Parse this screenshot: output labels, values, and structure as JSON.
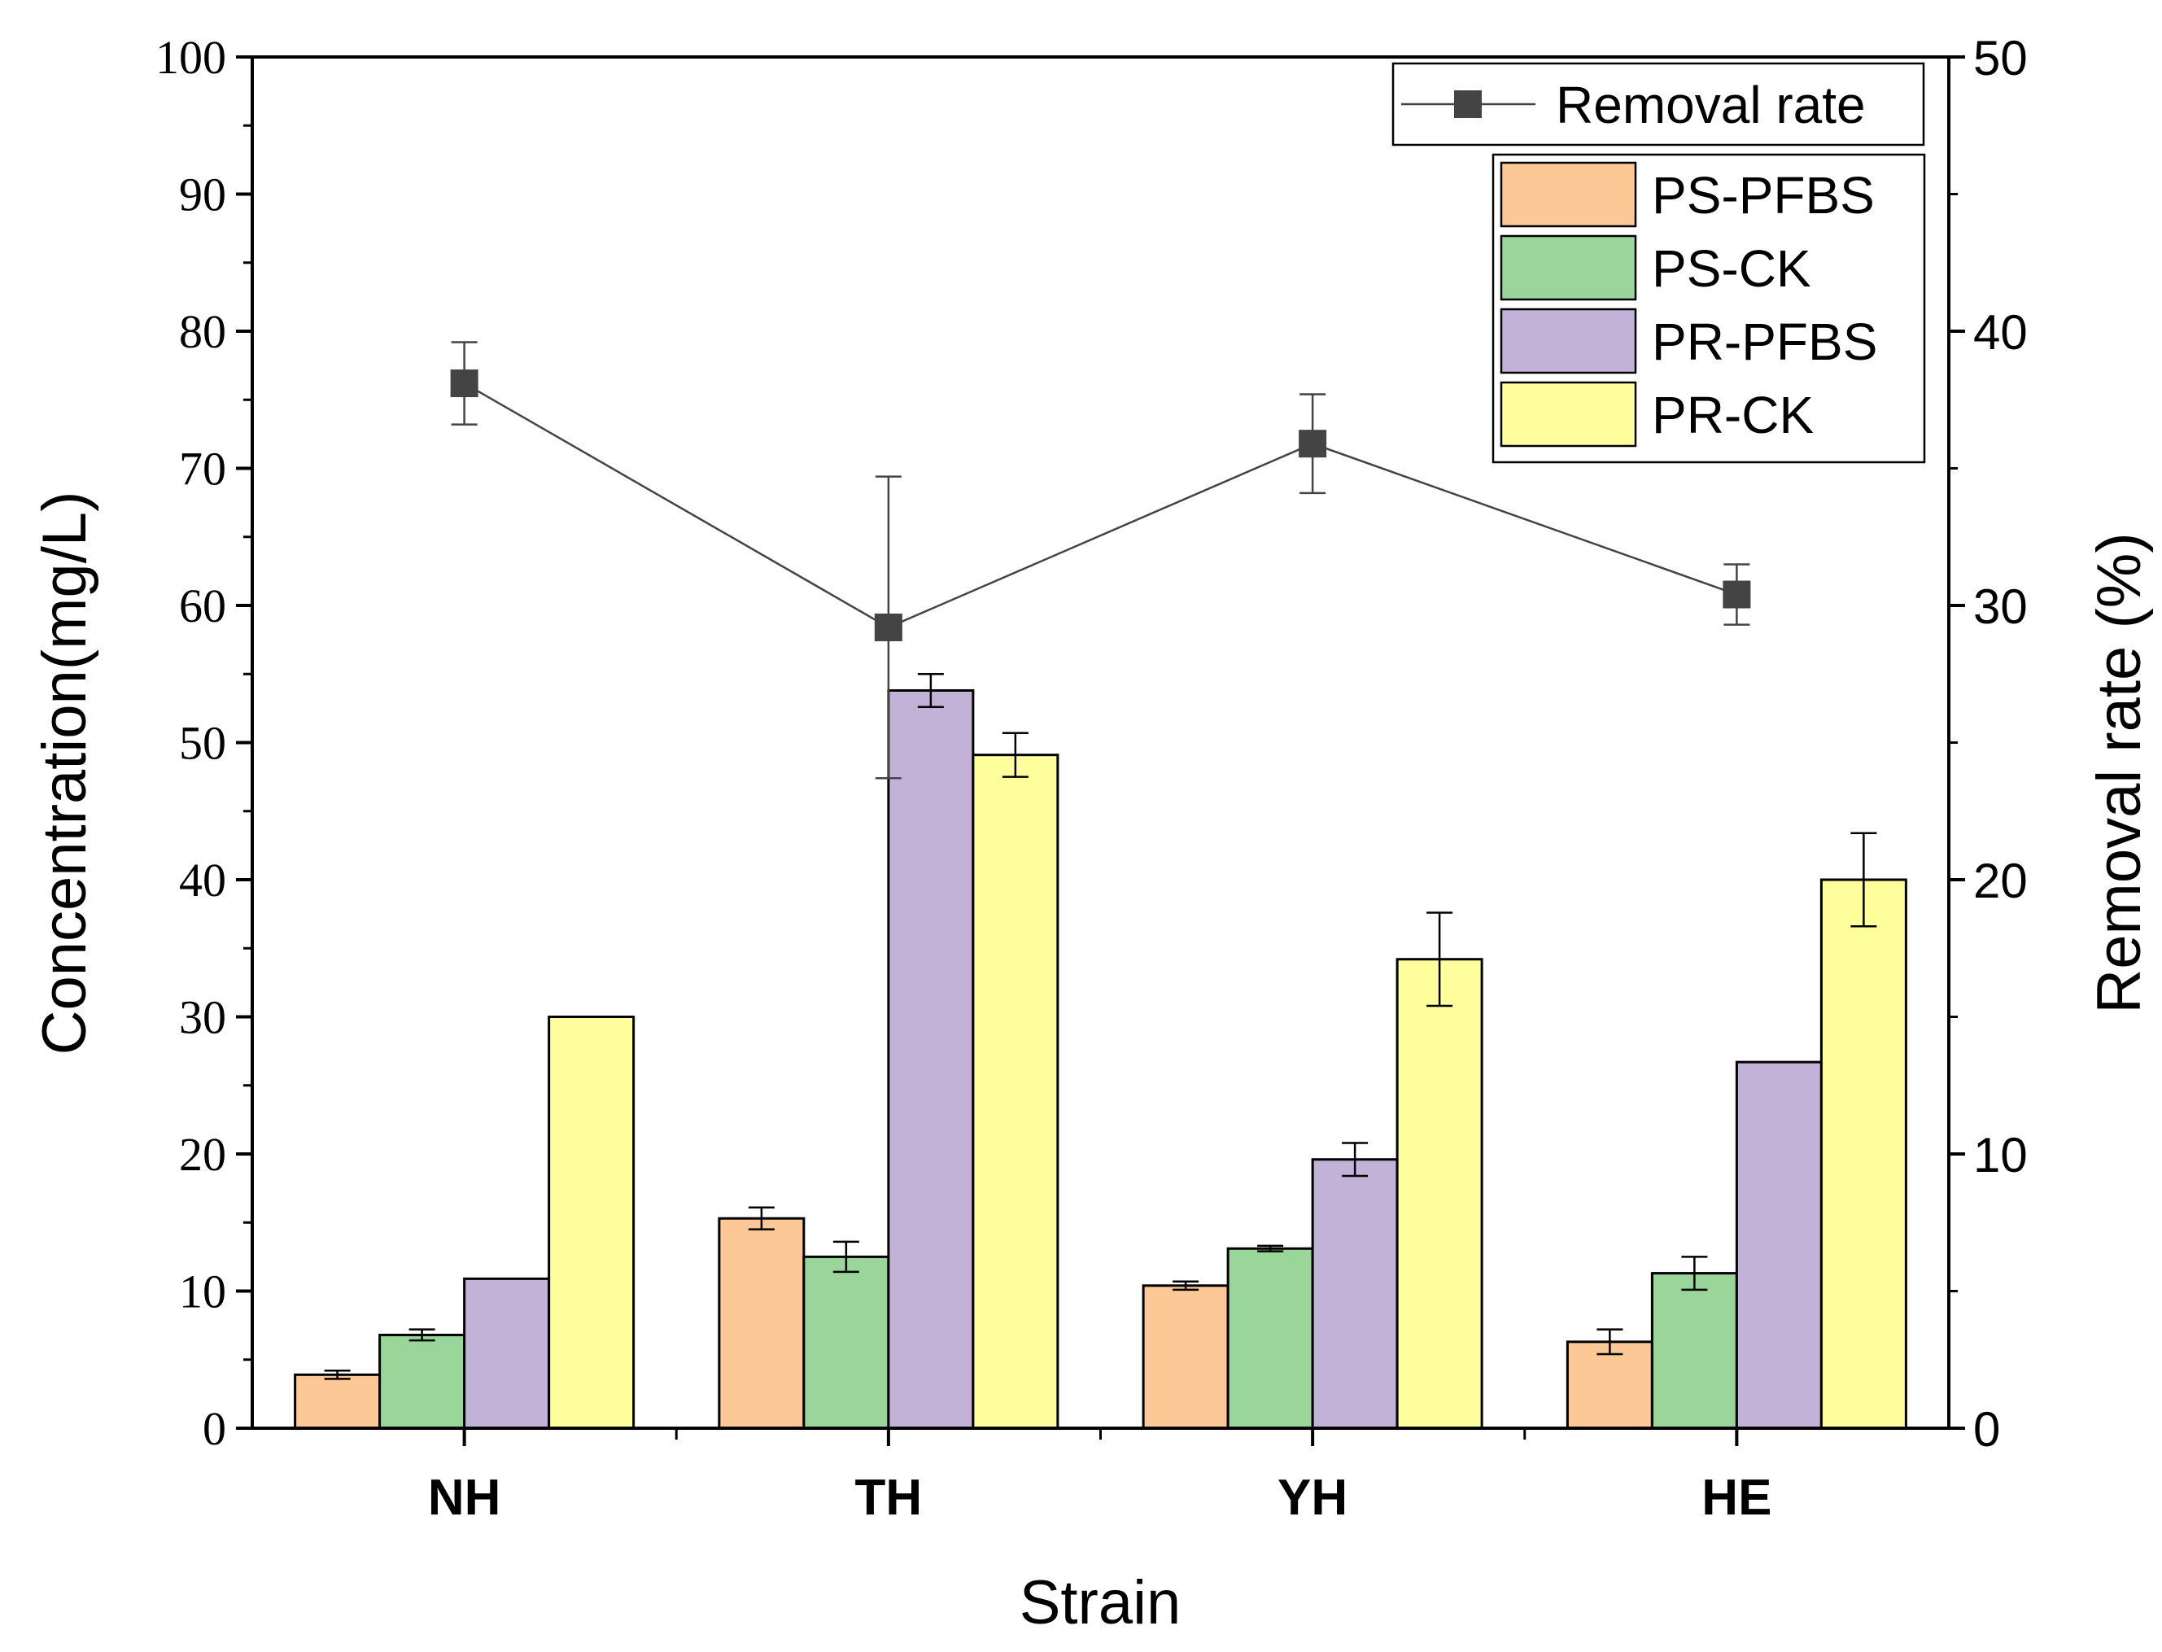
{
  "chart_data": {
    "type": "bar",
    "title": "",
    "categories": [
      "NH",
      "TH",
      "YH",
      "HE"
    ],
    "xlabel": "Strain",
    "ylabel": "Concentration(mg/L)",
    "ylabel_right": "Removal rate (%)",
    "ylim": [
      0,
      100
    ],
    "ylim_right": [
      0,
      50
    ],
    "yticks": [
      0,
      10,
      20,
      30,
      40,
      50,
      60,
      70,
      80,
      90,
      100
    ],
    "yticks_right": [
      0,
      10,
      20,
      30,
      40,
      50
    ],
    "legend_position": "top-right",
    "grid": false,
    "series": [
      {
        "name": "PS-PFBS",
        "color": "#fbc896",
        "values": [
          3.9,
          15.3,
          10.4,
          6.3
        ],
        "errors": [
          0.3,
          0.8,
          0.3,
          0.9
        ]
      },
      {
        "name": "PS-CK",
        "color": "#9ad69a",
        "values": [
          6.8,
          12.5,
          13.1,
          11.3
        ],
        "errors": [
          0.4,
          1.1,
          0.2,
          1.2
        ]
      },
      {
        "name": "PR-PFBS",
        "color": "#c2b2d7",
        "values": [
          10.9,
          53.8,
          19.6,
          26.7
        ],
        "errors": [
          0,
          1.2,
          1.2,
          0
        ]
      },
      {
        "name": "PR-CK",
        "color": "#fefe9c",
        "values": [
          30.0,
          49.1,
          34.2,
          40.0
        ],
        "errors": [
          0,
          1.6,
          3.4,
          3.4
        ]
      }
    ],
    "line_series": {
      "name": "Removal rate",
      "axis": "right",
      "color": "#444444",
      "values": [
        38.1,
        29.2,
        35.9,
        30.4
      ],
      "errors": [
        1.5,
        5.5,
        1.8,
        1.1
      ]
    }
  }
}
